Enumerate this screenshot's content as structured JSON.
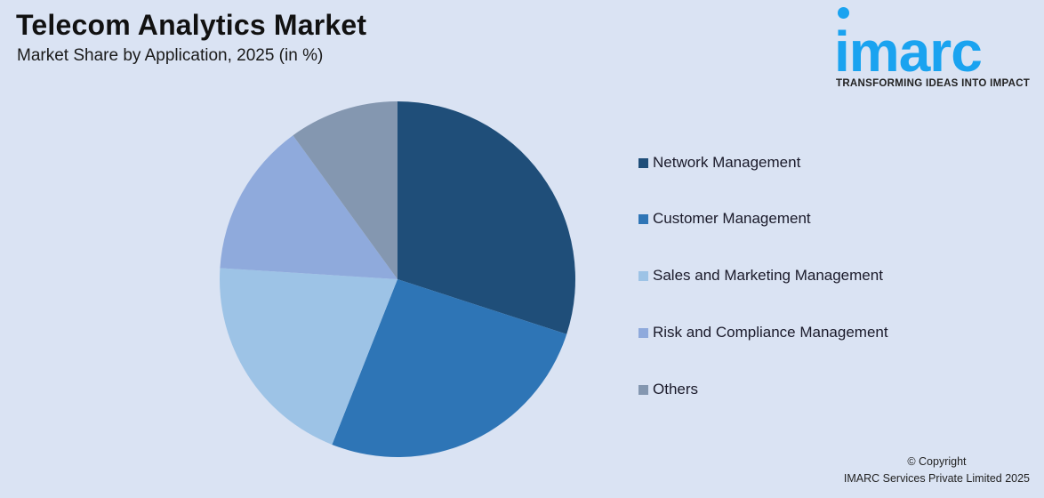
{
  "header": {
    "title": "Telecom Analytics Market",
    "subtitle": "Market Share by Application, 2025 (in %)"
  },
  "logo": {
    "word": "imarc",
    "tagline": "TRANSFORMING IDEAS INTO IMPACT",
    "color": "#1aa3f0"
  },
  "chart_data": {
    "type": "pie",
    "title": "Telecom Analytics Market",
    "subtitle": "Market Share by Application, 2025 (in %)",
    "categories": [
      "Network Management",
      "Customer Management",
      "Sales and Marketing Management",
      "Risk and Compliance Management",
      "Others"
    ],
    "values": [
      30,
      26,
      20,
      14,
      10
    ],
    "colors": [
      "#1f4e79",
      "#2e75b6",
      "#9dc3e6",
      "#8faadc",
      "#8497b0"
    ],
    "start_angle": "12 o'clock, clockwise",
    "legend_position": "right",
    "data_labels": false
  },
  "legend": {
    "items": [
      {
        "label": "Network Management",
        "color": "#1f4e79"
      },
      {
        "label": "Customer Management",
        "color": "#2e75b6"
      },
      {
        "label": "Sales and Marketing Management",
        "color": "#9dc3e6"
      },
      {
        "label": "Risk and Compliance Management",
        "color": "#8faadc"
      },
      {
        "label": "Others",
        "color": "#8497b0"
      }
    ]
  },
  "footer": {
    "copyright": "© Copyright",
    "company": "IMARC Services Private Limited 2025"
  }
}
